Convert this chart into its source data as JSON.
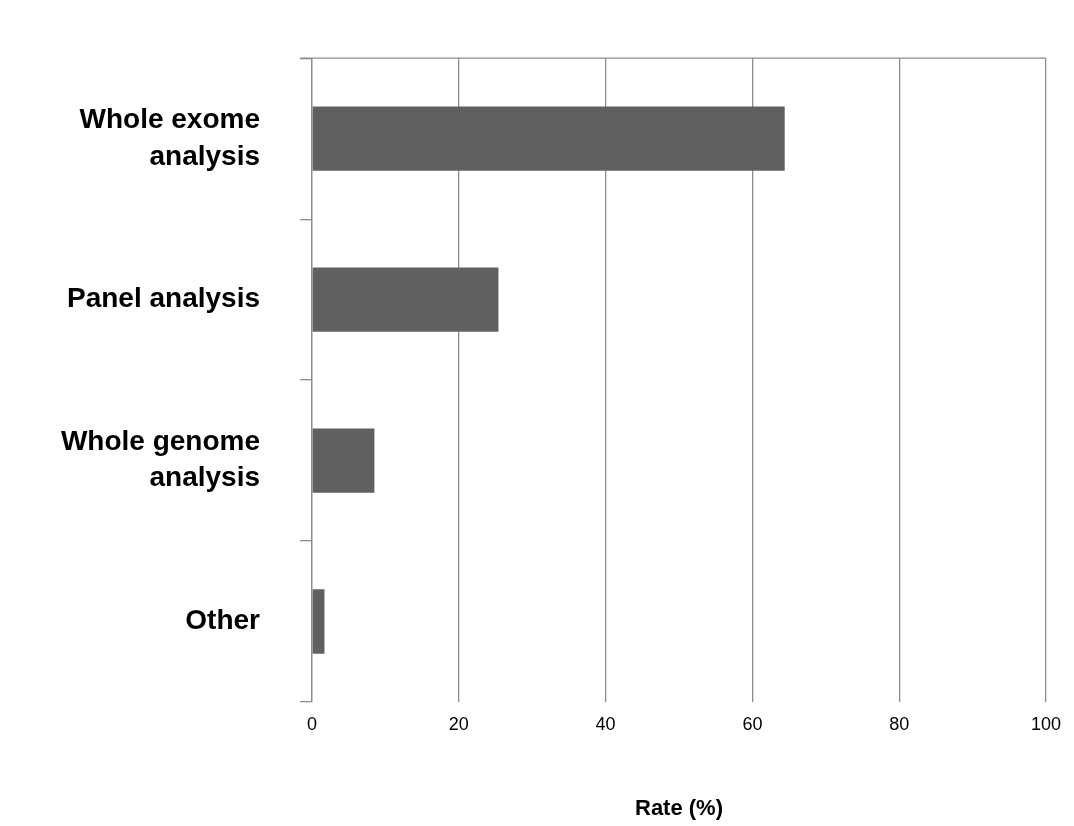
{
  "chart_data": {
    "type": "bar",
    "orientation": "horizontal",
    "xlabel": "Rate (%)",
    "categories": [
      "Whole exome analysis",
      "Panel analysis",
      "Whole genome analysis",
      "Other"
    ],
    "values": [
      64.4,
      25.4,
      8.5,
      1.7
    ],
    "color": "#606060",
    "xlim": [
      0,
      100
    ],
    "xticks": [
      0,
      20,
      40,
      60,
      80,
      100
    ],
    "grid": "x",
    "legend": false
  }
}
